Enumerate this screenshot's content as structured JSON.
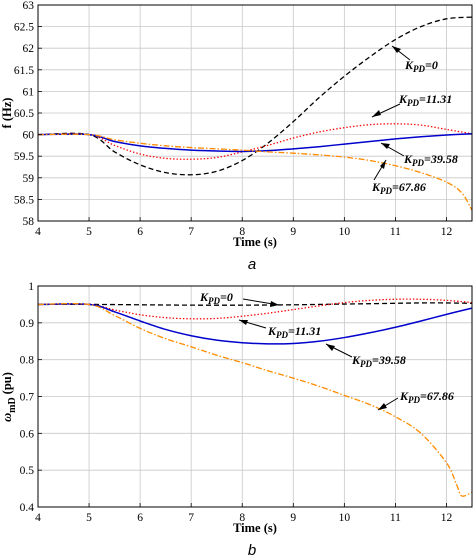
{
  "chart_data": [
    {
      "type": "line",
      "panel_label": "a",
      "xlabel": "Time (s)",
      "ylabel": "f (Hz)",
      "xlim": [
        4,
        12.5
      ],
      "ylim": [
        58,
        63
      ],
      "xticks": [
        4,
        5,
        6,
        7,
        8,
        9,
        10,
        11,
        12
      ],
      "yticks": [
        58,
        58.5,
        59,
        59.5,
        60,
        60.5,
        61,
        61.5,
        62,
        62.5,
        63
      ],
      "ytick_labels": [
        "58",
        "58.5",
        "59",
        "59.5",
        "60",
        "60.5",
        "61",
        "61.5",
        "62",
        "62.5",
        "63"
      ],
      "grid": true,
      "series": [
        {
          "name": "K_PD=0",
          "color": "#000000",
          "style": "dashed",
          "x": [
            4,
            5,
            5.5,
            6,
            6.5,
            7,
            7.5,
            8,
            8.5,
            9,
            9.5,
            10,
            10.5,
            11,
            11.5,
            12,
            12.5
          ],
          "y": [
            60,
            60,
            59.6,
            59.3,
            59.12,
            59.07,
            59.15,
            59.4,
            59.8,
            60.3,
            60.85,
            61.35,
            61.8,
            62.2,
            62.5,
            62.68,
            62.72
          ]
        },
        {
          "name": "K_PD=11.31",
          "color": "#ff0000",
          "style": "dotted",
          "x": [
            4,
            5,
            5.5,
            6,
            6.5,
            7,
            7.5,
            8,
            8.5,
            9,
            9.5,
            10,
            10.5,
            11,
            11.5,
            12,
            12.5
          ],
          "y": [
            60,
            60,
            59.75,
            59.55,
            59.45,
            59.43,
            59.47,
            59.6,
            59.75,
            59.92,
            60.06,
            60.16,
            60.23,
            60.25,
            60.22,
            60.12,
            60.02
          ]
        },
        {
          "name": "K_PD=39.58",
          "color": "#0000cc",
          "style": "solid",
          "x": [
            4,
            5,
            5.5,
            6,
            6.5,
            7,
            7.5,
            8,
            8.5,
            9,
            9.5,
            10,
            10.5,
            11,
            11.5,
            12,
            12.5
          ],
          "y": [
            60,
            60,
            59.84,
            59.74,
            59.68,
            59.64,
            59.62,
            59.61,
            59.63,
            59.67,
            59.72,
            59.78,
            59.84,
            59.9,
            59.95,
            59.99,
            60.02
          ]
        },
        {
          "name": "K_PD=67.86",
          "color": "#ff8c00",
          "style": "dashdot",
          "x": [
            4,
            5,
            5.5,
            6,
            6.5,
            7,
            7.5,
            8,
            8.5,
            9,
            9.5,
            10,
            10.5,
            11,
            11.5,
            12,
            12.3,
            12.5
          ],
          "y": [
            60,
            60,
            59.88,
            59.8,
            59.74,
            59.7,
            59.67,
            59.64,
            59.6,
            59.57,
            59.53,
            59.48,
            59.4,
            59.28,
            59.12,
            58.9,
            58.65,
            58.25
          ]
        }
      ],
      "annotations": [
        {
          "base": "K",
          "sub": "PD",
          "value": "=0"
        },
        {
          "base": "K",
          "sub": "PD",
          "value": "=11.31"
        },
        {
          "base": "K",
          "sub": "PD",
          "value": "=39.58"
        },
        {
          "base": "K",
          "sub": "PD",
          "value": "=67.86"
        }
      ]
    },
    {
      "type": "line",
      "panel_label": "b",
      "xlabel": "Time (s)",
      "ylabel": {
        "base": "ω",
        "sub": "mD",
        "unit": "(pu)"
      },
      "xlim": [
        4,
        12.5
      ],
      "ylim": [
        0.4,
        1
      ],
      "xticks": [
        4,
        5,
        6,
        7,
        8,
        9,
        10,
        11,
        12
      ],
      "yticks": [
        0.4,
        0.5,
        0.6,
        0.7,
        0.8,
        0.9,
        1
      ],
      "ytick_labels": [
        "0.4",
        "0.5",
        "0.6",
        "0.7",
        "0.8",
        "0.9",
        "1"
      ],
      "grid": true,
      "series": [
        {
          "name": "K_PD=0",
          "color": "#000000",
          "style": "dashed",
          "x": [
            4,
            5,
            6,
            7,
            8,
            9,
            10,
            11,
            11.5,
            12,
            12.5
          ],
          "y": [
            0.95,
            0.95,
            0.949,
            0.948,
            0.948,
            0.949,
            0.951,
            0.953,
            0.954,
            0.954,
            0.953
          ]
        },
        {
          "name": "K_PD=11.31",
          "color": "#ff0000",
          "style": "dotted",
          "x": [
            4,
            5,
            5.5,
            6,
            6.5,
            7,
            7.5,
            8,
            8.5,
            9,
            9.5,
            10,
            10.5,
            11,
            11.5,
            12,
            12.5
          ],
          "y": [
            0.95,
            0.95,
            0.935,
            0.922,
            0.914,
            0.911,
            0.912,
            0.918,
            0.926,
            0.936,
            0.946,
            0.955,
            0.961,
            0.964,
            0.964,
            0.961,
            0.955
          ]
        },
        {
          "name": "K_PD=39.58",
          "color": "#0000cc",
          "style": "solid",
          "x": [
            4,
            5,
            5.5,
            6,
            6.5,
            7,
            7.5,
            8,
            8.5,
            9,
            9.5,
            10,
            10.5,
            11,
            11.5,
            12,
            12.5
          ],
          "y": [
            0.95,
            0.95,
            0.93,
            0.905,
            0.882,
            0.865,
            0.853,
            0.846,
            0.843,
            0.844,
            0.85,
            0.86,
            0.873,
            0.888,
            0.905,
            0.923,
            0.94
          ]
        },
        {
          "name": "K_PD=67.86",
          "color": "#ff8c00",
          "style": "dashdot",
          "x": [
            4,
            5,
            5.5,
            6,
            6.5,
            7,
            7.5,
            8,
            8.5,
            9,
            9.5,
            10,
            10.5,
            11,
            11.5,
            12,
            12.2,
            12.3,
            12.5
          ],
          "y": [
            0.95,
            0.95,
            0.92,
            0.885,
            0.857,
            0.835,
            0.812,
            0.792,
            0.77,
            0.75,
            0.728,
            0.703,
            0.678,
            0.645,
            0.6,
            0.52,
            0.46,
            0.43,
            0.44
          ]
        }
      ],
      "annotations": [
        {
          "base": "K",
          "sub": "PD",
          "value": "=0"
        },
        {
          "base": "K",
          "sub": "PD",
          "value": "=11.31"
        },
        {
          "base": "K",
          "sub": "PD",
          "value": "=39.58"
        },
        {
          "base": "K",
          "sub": "PD",
          "value": "=67.86"
        }
      ]
    }
  ]
}
